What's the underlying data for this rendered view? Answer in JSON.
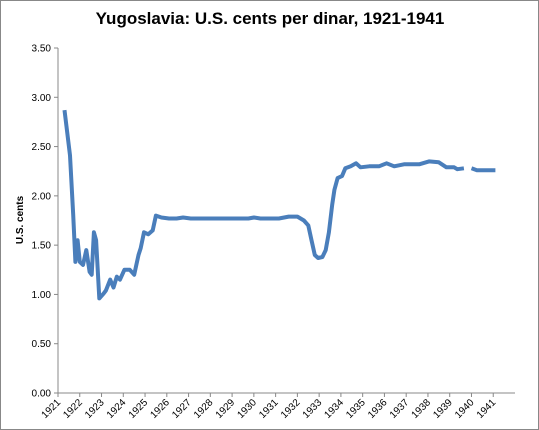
{
  "chart_data": {
    "type": "line",
    "title": "Yugoslavia: U.S. cents per dinar, 1921-1941",
    "y_label": "U.S. cents",
    "xlim": [
      1921,
      1942
    ],
    "xticks": [
      1921,
      1922,
      1923,
      1924,
      1925,
      1926,
      1927,
      1928,
      1929,
      1930,
      1931,
      1932,
      1933,
      1934,
      1935,
      1936,
      1937,
      1938,
      1939,
      1940,
      1941
    ],
    "ylim": [
      0,
      3.5
    ],
    "yticks": [
      {
        "value": 0,
        "label": "0.00"
      },
      {
        "value": 0.5,
        "label": "0.50"
      },
      {
        "value": 1,
        "label": "1.00"
      },
      {
        "value": 1.5,
        "label": "1.50"
      },
      {
        "value": 2,
        "label": "2.00"
      },
      {
        "value": 2.5,
        "label": "2.50"
      },
      {
        "value": 3,
        "label": "3.00"
      },
      {
        "value": 3.5,
        "label": "3.50"
      }
    ],
    "x": [
      1921.3,
      1921.55,
      1921.7,
      1921.8,
      1921.9,
      1922.0,
      1922.15,
      1922.3,
      1922.45,
      1922.55,
      1922.65,
      1922.75,
      1922.9,
      1923.1,
      1923.2,
      1923.4,
      1923.55,
      1923.7,
      1923.85,
      1924.05,
      1924.3,
      1924.5,
      1924.7,
      1924.8,
      1924.95,
      1925.15,
      1925.35,
      1925.5,
      1925.75,
      1926.1,
      1926.45,
      1926.75,
      1927.1,
      1929.75,
      1930.0,
      1930.3,
      1931.15,
      1931.6,
      1932.0,
      1932.3,
      1932.5,
      1932.65,
      1932.8,
      1932.95,
      1933.15,
      1933.3,
      1933.45,
      1933.6,
      1933.7,
      1933.85,
      1934.05,
      1934.2,
      1934.45,
      1934.7,
      1934.9,
      1935.3,
      1935.75,
      1936.1,
      1936.45,
      1936.9,
      1937.6,
      1938.05,
      1938.5,
      1938.85,
      1939.2,
      1939.35,
      1939.65,
      1939.8,
      1940.0,
      1940.25,
      1941.1
    ],
    "series": [
      {
        "color": "#4a7ebb",
        "values": [
          2.87,
          2.41,
          1.81,
          1.33,
          1.55,
          1.33,
          1.3,
          1.45,
          1.23,
          1.2,
          1.63,
          1.55,
          0.96,
          1.01,
          1.04,
          1.15,
          1.07,
          1.18,
          1.15,
          1.25,
          1.25,
          1.2,
          1.4,
          1.47,
          1.63,
          1.61,
          1.65,
          1.8,
          1.78,
          1.77,
          1.77,
          1.78,
          1.77,
          1.77,
          1.78,
          1.77,
          1.77,
          1.79,
          1.79,
          1.75,
          1.7,
          1.55,
          1.4,
          1.37,
          1.38,
          1.45,
          1.63,
          1.91,
          2.06,
          2.18,
          2.2,
          2.28,
          2.3,
          2.33,
          2.29,
          2.3,
          2.3,
          2.33,
          2.3,
          2.32,
          2.32,
          2.35,
          2.34,
          2.29,
          2.29,
          2.27,
          2.28,
          null,
          2.28,
          2.26,
          2.26
        ]
      }
    ]
  }
}
